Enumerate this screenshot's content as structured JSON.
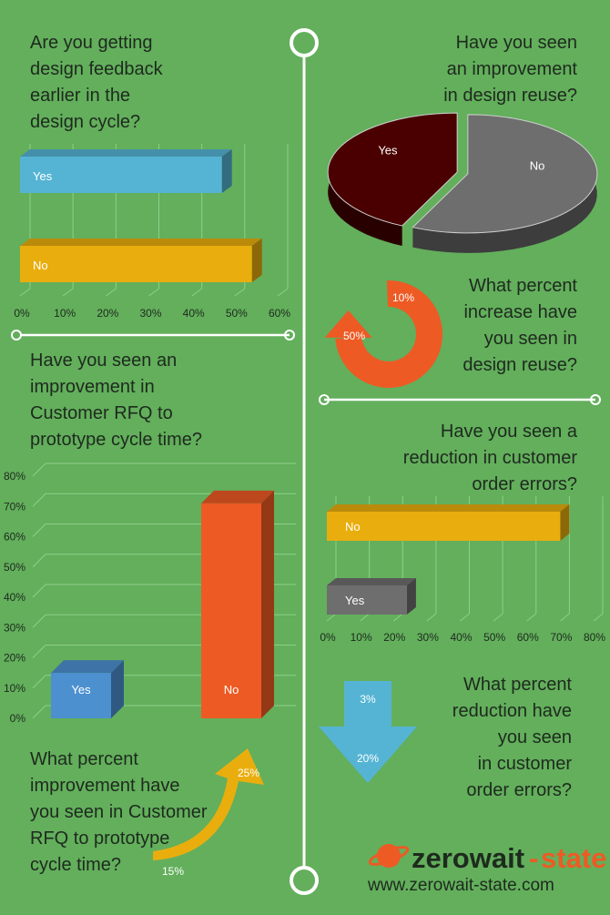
{
  "questions": {
    "q1": [
      "Are you getting",
      "design feedback",
      "earlier in the",
      "design cycle?"
    ],
    "q2": [
      "Have you seen",
      "an improvement",
      "in design reuse?"
    ],
    "q3": [
      "What percent",
      "increase have",
      "you seen in",
      "design reuse?"
    ],
    "q4": [
      "Have you seen an",
      "improvement in",
      "Customer RFQ to",
      "prototype cycle time?"
    ],
    "q5": [
      "Have you seen a",
      "reduction in customer",
      "order errors?"
    ],
    "q6": [
      "What percent",
      "reduction have",
      "you seen",
      "in customer",
      "order errors?"
    ],
    "q7": [
      "What percent",
      "improvement have",
      "you seen in Customer",
      "RFQ to prototype",
      "cycle time?"
    ]
  },
  "colors": {
    "background": "#63af5c",
    "blue": "#55b4d4",
    "yellow": "#e9ae0e",
    "orange": "#ee5a24",
    "maroon": "#4a0000",
    "gray": "#6e6e6e"
  },
  "chart_data": [
    {
      "id": "feedback",
      "type": "bar",
      "orientation": "horizontal",
      "categories": [
        "Yes",
        "No"
      ],
      "values": [
        47,
        54
      ],
      "xlim": [
        0,
        60
      ],
      "ticks": [
        "0%",
        "10%",
        "20%",
        "30%",
        "40%",
        "50%",
        "60%"
      ],
      "colors": [
        "#55b4d4",
        "#e9ae0e"
      ],
      "grid": true
    },
    {
      "id": "reuse",
      "type": "pie",
      "labels": [
        "No",
        "Yes"
      ],
      "values": [
        57,
        43
      ],
      "colors": [
        "#6e6e6e",
        "#4a0000"
      ]
    },
    {
      "id": "reuse-increase",
      "type": "pie",
      "labels": [
        "10%",
        "50%"
      ],
      "values": [
        10,
        50
      ],
      "colors": [
        "#ee5a24",
        "#ee5a24"
      ]
    },
    {
      "id": "rfq",
      "type": "bar",
      "orientation": "vertical",
      "categories": [
        "Yes",
        "No"
      ],
      "values": [
        15,
        71
      ],
      "ylim": [
        0,
        80
      ],
      "ticks": [
        "0%",
        "10%",
        "20%",
        "30%",
        "40%",
        "50%",
        "60%",
        "70%",
        "80%"
      ],
      "colors": [
        "#4c90d0",
        "#ee5a24"
      ],
      "grid": true
    },
    {
      "id": "order-errors",
      "type": "bar",
      "orientation": "horizontal",
      "categories": [
        "No",
        "Yes"
      ],
      "values": [
        70,
        24
      ],
      "xlim": [
        0,
        80
      ],
      "ticks": [
        "0%",
        "10%",
        "20%",
        "30%",
        "40%",
        "50%",
        "60%",
        "70%",
        "80%"
      ],
      "colors": [
        "#e9ae0e",
        "#6e6e6e"
      ],
      "grid": true
    },
    {
      "id": "error-reduction",
      "type": "bar",
      "labels": [
        "3%",
        "20%"
      ],
      "values": [
        3,
        20
      ],
      "colors": [
        "#55b4d4",
        "#55b4d4"
      ]
    },
    {
      "id": "rfq-improvement",
      "type": "bar",
      "labels": [
        "15%",
        "25%"
      ],
      "values": [
        15,
        25
      ],
      "colors": [
        "#e9ae0e",
        "#e9ae0e"
      ]
    }
  ],
  "brand": {
    "name_left": "zerowait",
    "name_right": "state",
    "url": "www.zerowait-state.com"
  }
}
